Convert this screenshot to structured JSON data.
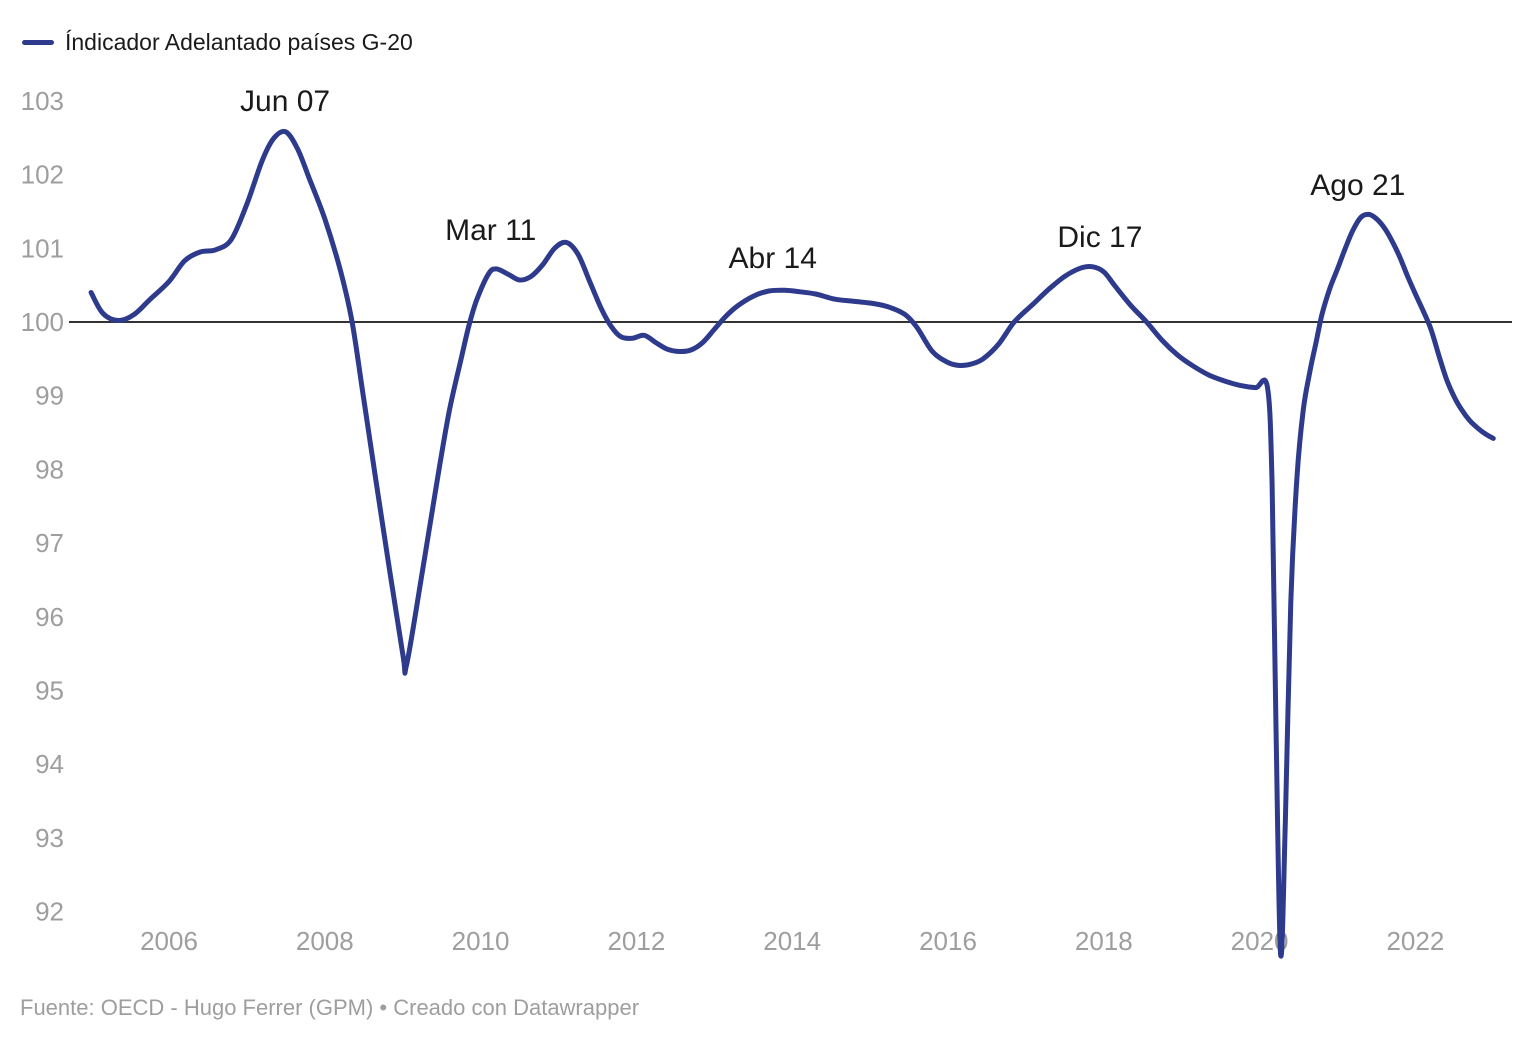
{
  "legend": {
    "label": "Índicador Adelantado países G-20"
  },
  "footer": {
    "text": "Fuente: OECD - Hugo Ferrer (GPM) • Creado con Datawrapper"
  },
  "colors": {
    "line": "#2e3b8c",
    "baseline": "#333333",
    "axis_labels": "#9e9e9e",
    "annotations": "#1a1a1a",
    "legend_text": "#1a1a1a",
    "footer_text": "#9e9e9e",
    "background": "#ffffff"
  },
  "chart_data": {
    "type": "line",
    "title": "",
    "legend_position": "top-left",
    "grid": false,
    "baseline_value": 100,
    "x_axis": {
      "ticks": [
        2006,
        2008,
        2010,
        2012,
        2014,
        2016,
        2018,
        2020,
        2022
      ],
      "range": [
        2004.7,
        2023.2
      ]
    },
    "y_axis": {
      "ticks": [
        92,
        93,
        94,
        95,
        96,
        97,
        98,
        99,
        100,
        101,
        102,
        103
      ],
      "range": [
        92,
        103
      ]
    },
    "annotations": [
      {
        "text": "Jun 07",
        "x": 2007.49,
        "y": 102.86
      },
      {
        "text": "Mar 11",
        "x": 2010.13,
        "y": 101.11
      },
      {
        "text": "Abr 14",
        "x": 2013.75,
        "y": 100.73
      },
      {
        "text": "Dic 17",
        "x": 2017.95,
        "y": 101.02
      },
      {
        "text": "Ago 21",
        "x": 2021.26,
        "y": 101.72
      }
    ],
    "series": [
      {
        "name": "Índicador Adelantado países G-20",
        "color": "#2e3b8c",
        "points": [
          [
            2005.0,
            100.4
          ],
          [
            2005.15,
            100.12
          ],
          [
            2005.35,
            100.02
          ],
          [
            2005.55,
            100.1
          ],
          [
            2005.75,
            100.3
          ],
          [
            2006.0,
            100.55
          ],
          [
            2006.2,
            100.83
          ],
          [
            2006.4,
            100.95
          ],
          [
            2006.6,
            100.98
          ],
          [
            2006.8,
            101.12
          ],
          [
            2007.0,
            101.6
          ],
          [
            2007.2,
            102.2
          ],
          [
            2007.35,
            102.5
          ],
          [
            2007.5,
            102.58
          ],
          [
            2007.65,
            102.35
          ],
          [
            2007.8,
            101.95
          ],
          [
            2008.0,
            101.4
          ],
          [
            2008.2,
            100.7
          ],
          [
            2008.35,
            100.0
          ],
          [
            2008.5,
            98.95
          ],
          [
            2008.75,
            97.2
          ],
          [
            2009.0,
            95.5
          ],
          [
            2009.05,
            95.35
          ],
          [
            2009.25,
            96.6
          ],
          [
            2009.45,
            97.9
          ],
          [
            2009.6,
            98.8
          ],
          [
            2009.75,
            99.5
          ],
          [
            2009.85,
            99.95
          ],
          [
            2009.95,
            100.3
          ],
          [
            2010.1,
            100.65
          ],
          [
            2010.2,
            100.72
          ],
          [
            2010.35,
            100.65
          ],
          [
            2010.5,
            100.57
          ],
          [
            2010.65,
            100.62
          ],
          [
            2010.8,
            100.78
          ],
          [
            2010.95,
            101.0
          ],
          [
            2011.1,
            101.08
          ],
          [
            2011.25,
            100.92
          ],
          [
            2011.4,
            100.55
          ],
          [
            2011.55,
            100.18
          ],
          [
            2011.67,
            99.95
          ],
          [
            2011.8,
            99.8
          ],
          [
            2011.95,
            99.78
          ],
          [
            2012.1,
            99.82
          ],
          [
            2012.25,
            99.72
          ],
          [
            2012.4,
            99.63
          ],
          [
            2012.55,
            99.6
          ],
          [
            2012.7,
            99.62
          ],
          [
            2012.85,
            99.72
          ],
          [
            2013.0,
            99.9
          ],
          [
            2013.15,
            100.08
          ],
          [
            2013.3,
            100.22
          ],
          [
            2013.5,
            100.35
          ],
          [
            2013.7,
            100.42
          ],
          [
            2013.9,
            100.43
          ],
          [
            2014.1,
            100.41
          ],
          [
            2014.3,
            100.38
          ],
          [
            2014.55,
            100.31
          ],
          [
            2014.8,
            100.28
          ],
          [
            2015.05,
            100.25
          ],
          [
            2015.25,
            100.2
          ],
          [
            2015.45,
            100.1
          ],
          [
            2015.6,
            99.93
          ],
          [
            2015.8,
            99.6
          ],
          [
            2016.0,
            99.45
          ],
          [
            2016.15,
            99.41
          ],
          [
            2016.3,
            99.43
          ],
          [
            2016.45,
            99.5
          ],
          [
            2016.65,
            99.7
          ],
          [
            2016.85,
            100.0
          ],
          [
            2017.1,
            100.25
          ],
          [
            2017.3,
            100.45
          ],
          [
            2017.5,
            100.62
          ],
          [
            2017.7,
            100.73
          ],
          [
            2017.85,
            100.75
          ],
          [
            2018.0,
            100.68
          ],
          [
            2018.15,
            100.48
          ],
          [
            2018.35,
            100.22
          ],
          [
            2018.55,
            100.0
          ],
          [
            2018.75,
            99.75
          ],
          [
            2018.95,
            99.55
          ],
          [
            2019.15,
            99.4
          ],
          [
            2019.35,
            99.28
          ],
          [
            2019.55,
            99.2
          ],
          [
            2019.75,
            99.14
          ],
          [
            2019.95,
            99.11
          ],
          [
            2020.1,
            99.12
          ],
          [
            2020.16,
            97.8
          ],
          [
            2020.21,
            94.5
          ],
          [
            2020.27,
            91.42
          ],
          [
            2020.33,
            93.2
          ],
          [
            2020.4,
            96.2
          ],
          [
            2020.48,
            97.9
          ],
          [
            2020.56,
            98.8
          ],
          [
            2020.64,
            99.3
          ],
          [
            2020.72,
            99.7
          ],
          [
            2020.8,
            100.1
          ],
          [
            2020.9,
            100.45
          ],
          [
            2021.0,
            100.72
          ],
          [
            2021.1,
            101.0
          ],
          [
            2021.2,
            101.25
          ],
          [
            2021.3,
            101.42
          ],
          [
            2021.4,
            101.46
          ],
          [
            2021.5,
            101.4
          ],
          [
            2021.6,
            101.28
          ],
          [
            2021.7,
            101.1
          ],
          [
            2021.8,
            100.88
          ],
          [
            2021.9,
            100.62
          ],
          [
            2022.0,
            100.38
          ],
          [
            2022.1,
            100.15
          ],
          [
            2022.2,
            99.9
          ],
          [
            2022.3,
            99.55
          ],
          [
            2022.4,
            99.22
          ],
          [
            2022.5,
            98.98
          ],
          [
            2022.6,
            98.8
          ],
          [
            2022.7,
            98.66
          ],
          [
            2022.8,
            98.56
          ],
          [
            2022.9,
            98.48
          ],
          [
            2023.0,
            98.42
          ]
        ]
      }
    ]
  }
}
